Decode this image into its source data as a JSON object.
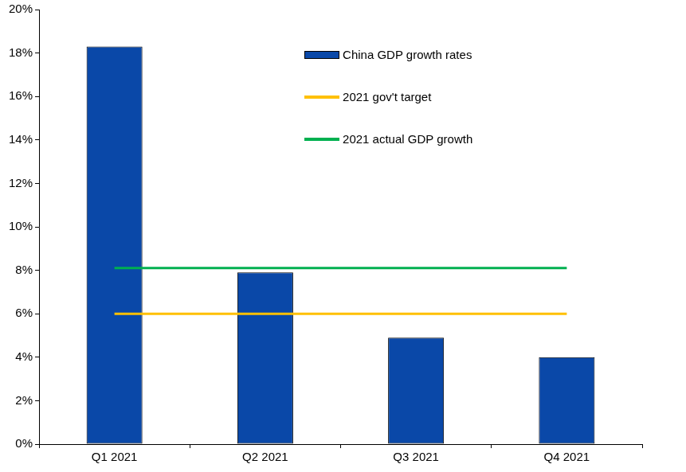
{
  "chart_data": {
    "type": "bar",
    "categories": [
      "Q1 2021",
      "Q2 2021",
      "Q3 2021",
      "Q4 2021"
    ],
    "series": [
      {
        "name": "China GDP growth rates",
        "type": "bar",
        "color": "#0a48a8",
        "values": [
          18.3,
          7.9,
          4.9,
          4.0
        ]
      },
      {
        "name": "2021 gov't target",
        "type": "line",
        "color": "#ffc000",
        "values": [
          6,
          6,
          6,
          6
        ]
      },
      {
        "name": "2021 actual GDP growth",
        "type": "line",
        "color": "#00b050",
        "values": [
          8.1,
          8.1,
          8.1,
          8.1
        ]
      }
    ],
    "ylim": [
      0,
      20
    ],
    "yticks": [
      {
        "value": 0,
        "label": "0%"
      },
      {
        "value": 2,
        "label": "2%"
      },
      {
        "value": 4,
        "label": "4%"
      },
      {
        "value": 6,
        "label": "6%"
      },
      {
        "value": 8,
        "label": "8%"
      },
      {
        "value": 10,
        "label": "10%"
      },
      {
        "value": 12,
        "label": "12%"
      },
      {
        "value": 14,
        "label": "14%"
      },
      {
        "value": 16,
        "label": "16%"
      },
      {
        "value": 18,
        "label": "18%"
      },
      {
        "value": 20,
        "label": "20%"
      }
    ],
    "grid": false,
    "legend": "upper right"
  }
}
